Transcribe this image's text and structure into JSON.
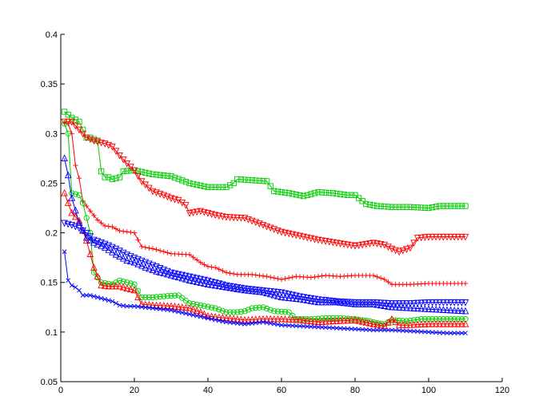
{
  "chart_data": {
    "type": "line",
    "title": "",
    "xlabel": "",
    "ylabel": "",
    "xlim": [
      0,
      120
    ],
    "ylim": [
      0.05,
      0.4
    ],
    "xticks": [
      0,
      20,
      40,
      60,
      80,
      100,
      120
    ],
    "yticks": [
      0.05,
      0.1,
      0.15,
      0.2,
      0.25,
      0.3,
      0.35,
      0.4
    ],
    "xtick_labels": [
      "0",
      "20",
      "40",
      "60",
      "80",
      "100",
      "120"
    ],
    "ytick_labels": [
      "0.05",
      "0.1",
      "0.15",
      "0.2",
      "0.25",
      "0.3",
      "0.35",
      "0.4"
    ],
    "grid": false,
    "legend": "none",
    "series": [
      {
        "color": "#00cc00",
        "marker": "square",
        "points": [
          [
            1,
            0.322
          ],
          [
            3,
            0.316
          ],
          [
            5,
            0.312
          ],
          [
            7,
            0.296
          ],
          [
            8,
            0.296
          ],
          [
            10,
            0.293
          ],
          [
            11,
            0.262
          ],
          [
            12,
            0.256
          ],
          [
            13,
            0.256
          ],
          [
            14,
            0.254
          ],
          [
            16,
            0.256
          ],
          [
            17,
            0.262
          ],
          [
            20,
            0.263
          ],
          [
            25,
            0.259
          ],
          [
            30,
            0.257
          ],
          [
            35,
            0.25
          ],
          [
            40,
            0.246
          ],
          [
            45,
            0.246
          ],
          [
            47,
            0.25
          ],
          [
            48,
            0.254
          ],
          [
            52,
            0.253
          ],
          [
            56,
            0.252
          ],
          [
            58,
            0.242
          ],
          [
            62,
            0.24
          ],
          [
            66,
            0.237
          ],
          [
            70,
            0.241
          ],
          [
            74,
            0.24
          ],
          [
            78,
            0.238
          ],
          [
            80,
            0.238
          ],
          [
            83,
            0.229
          ],
          [
            86,
            0.227
          ],
          [
            90,
            0.226
          ],
          [
            95,
            0.226
          ],
          [
            100,
            0.225
          ],
          [
            103,
            0.227
          ],
          [
            106,
            0.227
          ],
          [
            110,
            0.227
          ]
        ]
      },
      {
        "color": "#ff0000",
        "marker": "triangle-down",
        "points": [
          [
            1,
            0.312
          ],
          [
            3,
            0.312
          ],
          [
            5,
            0.304
          ],
          [
            7,
            0.296
          ],
          [
            9,
            0.293
          ],
          [
            12,
            0.29
          ],
          [
            14,
            0.287
          ],
          [
            16,
            0.278
          ],
          [
            18,
            0.27
          ],
          [
            20,
            0.263
          ],
          [
            22,
            0.252
          ],
          [
            25,
            0.242
          ],
          [
            28,
            0.238
          ],
          [
            30,
            0.235
          ],
          [
            32,
            0.233
          ],
          [
            34,
            0.228
          ],
          [
            35,
            0.22
          ],
          [
            38,
            0.222
          ],
          [
            42,
            0.218
          ],
          [
            45,
            0.216
          ],
          [
            50,
            0.215
          ],
          [
            55,
            0.208
          ],
          [
            60,
            0.201
          ],
          [
            65,
            0.197
          ],
          [
            70,
            0.193
          ],
          [
            75,
            0.19
          ],
          [
            80,
            0.187
          ],
          [
            85,
            0.19
          ],
          [
            88,
            0.188
          ],
          [
            90,
            0.184
          ],
          [
            92,
            0.181
          ],
          [
            95,
            0.185
          ],
          [
            97,
            0.195
          ],
          [
            100,
            0.196
          ],
          [
            105,
            0.196
          ],
          [
            110,
            0.196
          ]
        ]
      },
      {
        "color": "#ff0000",
        "marker": "plus",
        "points": [
          [
            1,
            0.311
          ],
          [
            2,
            0.31
          ],
          [
            3,
            0.3
          ],
          [
            4,
            0.268
          ],
          [
            5,
            0.255
          ],
          [
            6,
            0.232
          ],
          [
            8,
            0.222
          ],
          [
            10,
            0.213
          ],
          [
            12,
            0.207
          ],
          [
            14,
            0.206
          ],
          [
            16,
            0.202
          ],
          [
            20,
            0.2
          ],
          [
            22,
            0.186
          ],
          [
            25,
            0.184
          ],
          [
            30,
            0.179
          ],
          [
            35,
            0.178
          ],
          [
            38,
            0.17
          ],
          [
            40,
            0.166
          ],
          [
            42,
            0.165
          ],
          [
            45,
            0.16
          ],
          [
            48,
            0.158
          ],
          [
            52,
            0.158
          ],
          [
            56,
            0.156
          ],
          [
            60,
            0.153
          ],
          [
            64,
            0.156
          ],
          [
            68,
            0.155
          ],
          [
            72,
            0.157
          ],
          [
            76,
            0.156
          ],
          [
            80,
            0.157
          ],
          [
            85,
            0.157
          ],
          [
            88,
            0.153
          ],
          [
            90,
            0.148
          ],
          [
            95,
            0.148
          ],
          [
            100,
            0.149
          ],
          [
            105,
            0.149
          ],
          [
            110,
            0.149
          ]
        ]
      },
      {
        "color": "#00cc00",
        "marker": "circle",
        "points": [
          [
            1,
            0.31
          ],
          [
            2,
            0.3
          ],
          [
            3,
            0.24
          ],
          [
            5,
            0.238
          ],
          [
            6,
            0.23
          ],
          [
            8,
            0.2
          ],
          [
            9,
            0.16
          ],
          [
            11,
            0.15
          ],
          [
            14,
            0.148
          ],
          [
            16,
            0.152
          ],
          [
            18,
            0.15
          ],
          [
            20,
            0.148
          ],
          [
            22,
            0.135
          ],
          [
            25,
            0.135
          ],
          [
            28,
            0.136
          ],
          [
            32,
            0.137
          ],
          [
            35,
            0.129
          ],
          [
            38,
            0.127
          ],
          [
            42,
            0.124
          ],
          [
            45,
            0.12
          ],
          [
            48,
            0.12
          ],
          [
            50,
            0.121
          ],
          [
            52,
            0.124
          ],
          [
            55,
            0.125
          ],
          [
            58,
            0.121
          ],
          [
            62,
            0.12
          ],
          [
            64,
            0.113
          ],
          [
            68,
            0.113
          ],
          [
            72,
            0.114
          ],
          [
            76,
            0.114
          ],
          [
            80,
            0.113
          ],
          [
            84,
            0.111
          ],
          [
            86,
            0.109
          ],
          [
            88,
            0.108
          ],
          [
            90,
            0.112
          ],
          [
            94,
            0.111
          ],
          [
            98,
            0.113
          ],
          [
            102,
            0.113
          ],
          [
            110,
            0.113
          ]
        ]
      },
      {
        "color": "#ff0000",
        "marker": "triangle-up",
        "points": [
          [
            1,
            0.24
          ],
          [
            2,
            0.23
          ],
          [
            3,
            0.22
          ],
          [
            5,
            0.212
          ],
          [
            7,
            0.192
          ],
          [
            9,
            0.165
          ],
          [
            11,
            0.147
          ],
          [
            13,
            0.146
          ],
          [
            16,
            0.146
          ],
          [
            18,
            0.144
          ],
          [
            20,
            0.142
          ],
          [
            22,
            0.128
          ],
          [
            25,
            0.127
          ],
          [
            30,
            0.126
          ],
          [
            35,
            0.124
          ],
          [
            38,
            0.12
          ],
          [
            40,
            0.116
          ],
          [
            45,
            0.114
          ],
          [
            50,
            0.112
          ],
          [
            55,
            0.113
          ],
          [
            60,
            0.113
          ],
          [
            65,
            0.112
          ],
          [
            70,
            0.11
          ],
          [
            75,
            0.111
          ],
          [
            80,
            0.112
          ],
          [
            85,
            0.108
          ],
          [
            88,
            0.106
          ],
          [
            90,
            0.113
          ],
          [
            92,
            0.107
          ],
          [
            95,
            0.107
          ],
          [
            100,
            0.108
          ],
          [
            105,
            0.108
          ],
          [
            110,
            0.108
          ]
        ]
      },
      {
        "color": "#0000ff",
        "marker": "triangle-up",
        "points": [
          [
            1,
            0.275
          ],
          [
            2,
            0.258
          ],
          [
            3,
            0.235
          ],
          [
            5,
            0.21
          ],
          [
            7,
            0.195
          ],
          [
            9,
            0.19
          ],
          [
            12,
            0.185
          ],
          [
            15,
            0.178
          ],
          [
            18,
            0.172
          ],
          [
            20,
            0.17
          ],
          [
            23,
            0.165
          ],
          [
            26,
            0.161
          ],
          [
            30,
            0.157
          ],
          [
            35,
            0.152
          ],
          [
            40,
            0.148
          ],
          [
            45,
            0.145
          ],
          [
            50,
            0.142
          ],
          [
            55,
            0.14
          ],
          [
            60,
            0.135
          ],
          [
            65,
            0.133
          ],
          [
            70,
            0.13
          ],
          [
            75,
            0.13
          ],
          [
            80,
            0.128
          ],
          [
            85,
            0.128
          ],
          [
            90,
            0.125
          ],
          [
            95,
            0.124
          ],
          [
            100,
            0.123
          ],
          [
            105,
            0.122
          ],
          [
            110,
            0.121
          ]
        ]
      },
      {
        "color": "#0000ff",
        "marker": "triangle-down",
        "points": [
          [
            1,
            0.21
          ],
          [
            3,
            0.208
          ],
          [
            5,
            0.205
          ],
          [
            7,
            0.2
          ],
          [
            9,
            0.193
          ],
          [
            12,
            0.189
          ],
          [
            15,
            0.184
          ],
          [
            18,
            0.178
          ],
          [
            22,
            0.172
          ],
          [
            26,
            0.166
          ],
          [
            30,
            0.16
          ],
          [
            35,
            0.156
          ],
          [
            40,
            0.152
          ],
          [
            45,
            0.147
          ],
          [
            50,
            0.144
          ],
          [
            55,
            0.142
          ],
          [
            60,
            0.14
          ],
          [
            65,
            0.136
          ],
          [
            70,
            0.133
          ],
          [
            75,
            0.131
          ],
          [
            80,
            0.13
          ],
          [
            85,
            0.13
          ],
          [
            90,
            0.129
          ],
          [
            95,
            0.129
          ],
          [
            100,
            0.13
          ],
          [
            105,
            0.13
          ],
          [
            110,
            0.13
          ]
        ]
      },
      {
        "color": "#0000ff",
        "marker": "x",
        "points": [
          [
            1,
            0.181
          ],
          [
            2,
            0.152
          ],
          [
            3,
            0.147
          ],
          [
            4,
            0.145
          ],
          [
            5,
            0.142
          ],
          [
            6,
            0.137
          ],
          [
            8,
            0.137
          ],
          [
            10,
            0.135
          ],
          [
            12,
            0.133
          ],
          [
            14,
            0.131
          ],
          [
            16,
            0.127
          ],
          [
            18,
            0.126
          ],
          [
            20,
            0.126
          ],
          [
            25,
            0.124
          ],
          [
            30,
            0.122
          ],
          [
            35,
            0.118
          ],
          [
            40,
            0.114
          ],
          [
            45,
            0.11
          ],
          [
            50,
            0.108
          ],
          [
            55,
            0.11
          ],
          [
            60,
            0.107
          ],
          [
            65,
            0.106
          ],
          [
            70,
            0.105
          ],
          [
            75,
            0.104
          ],
          [
            80,
            0.103
          ],
          [
            85,
            0.102
          ],
          [
            90,
            0.102
          ],
          [
            95,
            0.101
          ],
          [
            100,
            0.1
          ],
          [
            105,
            0.099
          ],
          [
            110,
            0.099
          ]
        ]
      }
    ]
  }
}
